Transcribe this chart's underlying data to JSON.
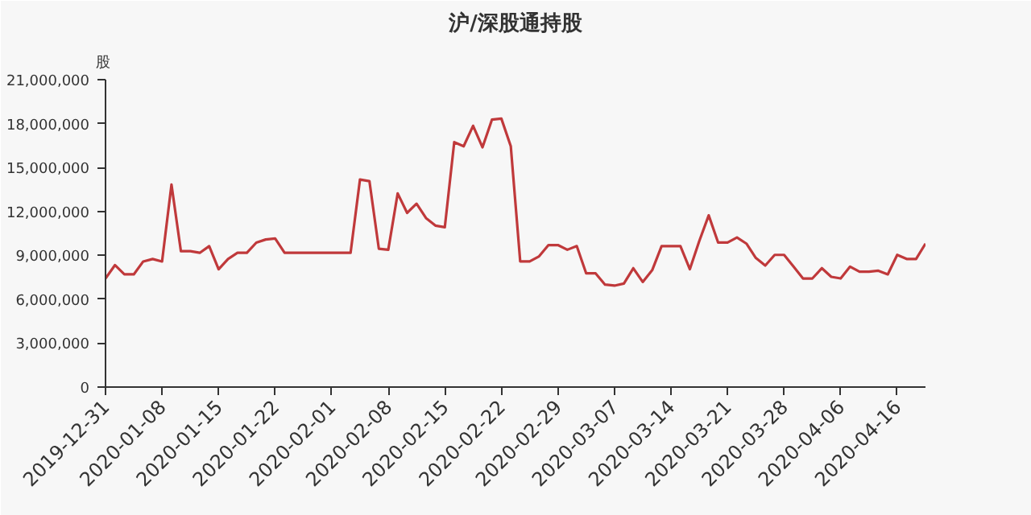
{
  "chart_data": {
    "type": "line",
    "title": "沪/深股通持股",
    "ylabel": "股",
    "categories": [
      "2019-12-31",
      null,
      null,
      null,
      null,
      null,
      "2020-01-08",
      null,
      null,
      null,
      null,
      null,
      "2020-01-15",
      null,
      null,
      null,
      null,
      null,
      "2020-01-22",
      null,
      null,
      null,
      null,
      null,
      "2020-02-01",
      null,
      null,
      null,
      null,
      null,
      "2020-02-08",
      null,
      null,
      null,
      null,
      null,
      "2020-02-15",
      null,
      null,
      null,
      null,
      null,
      "2020-02-22",
      null,
      null,
      null,
      null,
      null,
      "2020-02-29",
      null,
      null,
      null,
      null,
      null,
      "2020-03-07",
      null,
      null,
      null,
      null,
      null,
      "2020-03-14",
      null,
      null,
      null,
      null,
      null,
      "2020-03-21",
      null,
      null,
      null,
      null,
      null,
      "2020-03-28",
      null,
      null,
      null,
      null,
      null,
      "2020-04-06",
      null,
      null,
      null,
      null,
      null,
      "2020-04-16",
      null,
      null,
      null
    ],
    "series": [
      {
        "color": "#c0393b",
        "values": [
          7420000,
          8330000,
          7700000,
          7700000,
          8580000,
          8750000,
          8580000,
          13830000,
          9280000,
          9280000,
          9170000,
          9630000,
          8050000,
          8750000,
          9170000,
          9170000,
          9870000,
          10080000,
          10150000,
          9170000,
          9170000,
          9170000,
          9170000,
          9170000,
          9170000,
          9170000,
          9170000,
          14180000,
          14070000,
          9450000,
          9380000,
          13230000,
          11900000,
          12530000,
          11550000,
          11030000,
          10920000,
          16730000,
          16450000,
          17850000,
          16380000,
          18270000,
          18340000,
          16450000,
          8580000,
          8580000,
          8930000,
          9700000,
          9700000,
          9380000,
          9630000,
          7770000,
          7770000,
          7000000,
          6930000,
          7070000,
          8120000,
          7180000,
          7980000,
          9630000,
          9630000,
          9630000,
          8050000,
          9980000,
          11730000,
          9870000,
          9870000,
          10220000,
          9800000,
          8820000,
          8300000,
          9030000,
          9030000,
          8230000,
          7420000,
          7420000,
          8120000,
          7530000,
          7420000,
          8230000,
          7880000,
          7880000,
          7950000,
          7700000,
          9030000,
          8750000,
          8750000,
          9800000
        ]
      }
    ],
    "ylim": [
      0,
      21000000
    ],
    "yticks": [
      0,
      {
        "value": 3000000,
        "label": "3,000,000"
      },
      {
        "value": 6000000,
        "label": "6,000,000"
      },
      {
        "value": 9000000,
        "label": "9,000,000"
      },
      {
        "value": 12000000,
        "label": "12,000,000"
      },
      {
        "value": 15000000,
        "label": "15,000,000"
      },
      {
        "value": 18000000,
        "label": "18,000,000"
      },
      {
        "value": 21000000,
        "label": "21,000,000"
      }
    ],
    "grid": false,
    "line_style": "solid"
  }
}
